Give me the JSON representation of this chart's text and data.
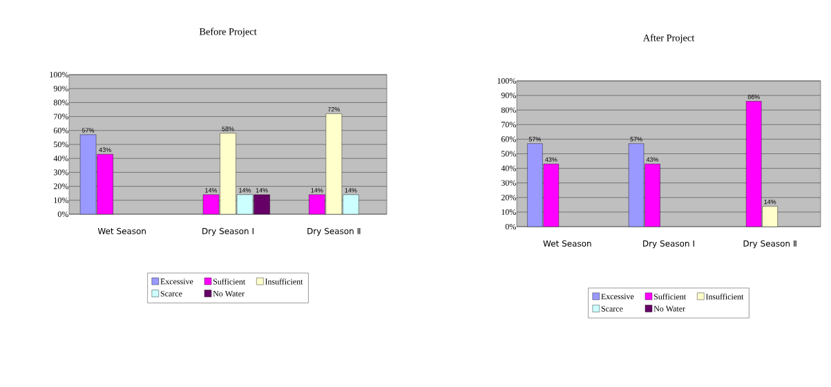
{
  "chart_data": [
    {
      "type": "bar",
      "title": "Before Project",
      "categories": [
        "Wet Season",
        "Dry Season Ⅰ",
        "Dry Season Ⅱ"
      ],
      "ylim": [
        0,
        100
      ],
      "yticks": [
        {
          "value": 0,
          "label": "0%"
        },
        {
          "value": 10,
          "label": "10%"
        },
        {
          "value": 20,
          "label": "20%"
        },
        {
          "value": 30,
          "label": "30%"
        },
        {
          "value": 40,
          "label": "40%"
        },
        {
          "value": 50,
          "label": "50%"
        },
        {
          "value": 60,
          "label": "60%"
        },
        {
          "value": 70,
          "label": "70%"
        },
        {
          "value": 80,
          "label": "80%"
        },
        {
          "value": 90,
          "label": "90%"
        },
        {
          "value": 100,
          "label": "100%"
        }
      ],
      "grid": "y",
      "legend": "bottom",
      "series": [
        {
          "name": "Excessive",
          "color": "#9999ff",
          "values": [
            57,
            null,
            null
          ],
          "value_labels": [
            "57%",
            null,
            null
          ]
        },
        {
          "name": "Sufficient",
          "color": "#ff00ff",
          "values": [
            43,
            14,
            14
          ],
          "value_labels": [
            "43%",
            "14%",
            "14%"
          ]
        },
        {
          "name": "Insufficient",
          "color": "#ffffcc",
          "values": [
            null,
            58,
            72
          ],
          "value_labels": [
            null,
            "58%",
            "72%"
          ]
        },
        {
          "name": "Scarce",
          "color": "#ccffff",
          "values": [
            null,
            14,
            14
          ],
          "value_labels": [
            null,
            "14%",
            "14%"
          ]
        },
        {
          "name": "No Water",
          "color": "#660066",
          "values": [
            null,
            14,
            null
          ],
          "value_labels": [
            null,
            "14%",
            null
          ]
        }
      ]
    },
    {
      "type": "bar",
      "title": "After Project",
      "categories": [
        "Wet Season",
        "Dry Season Ⅰ",
        "Dry Season Ⅱ"
      ],
      "ylim": [
        0,
        100
      ],
      "yticks": [
        {
          "value": 0,
          "label": "0%"
        },
        {
          "value": 10,
          "label": "10%"
        },
        {
          "value": 20,
          "label": "20%"
        },
        {
          "value": 30,
          "label": "30%"
        },
        {
          "value": 40,
          "label": "40%"
        },
        {
          "value": 50,
          "label": "50%"
        },
        {
          "value": 60,
          "label": "60%"
        },
        {
          "value": 70,
          "label": "70%"
        },
        {
          "value": 80,
          "label": "80%"
        },
        {
          "value": 90,
          "label": "90%"
        },
        {
          "value": 100,
          "label": "100%"
        }
      ],
      "grid": "y",
      "legend": "bottom",
      "series": [
        {
          "name": "Excessive",
          "color": "#9999ff",
          "values": [
            57,
            57,
            null
          ],
          "value_labels": [
            "57%",
            "57%",
            null
          ]
        },
        {
          "name": "Sufficient",
          "color": "#ff00ff",
          "values": [
            43,
            43,
            86
          ],
          "value_labels": [
            "43%",
            "43%",
            "86%"
          ]
        },
        {
          "name": "Insufficient",
          "color": "#ffffcc",
          "values": [
            null,
            null,
            14
          ],
          "value_labels": [
            null,
            null,
            "14%"
          ]
        },
        {
          "name": "Scarce",
          "color": "#ccffff",
          "values": [
            null,
            null,
            null
          ]
        },
        {
          "name": "No Water",
          "color": "#660066",
          "values": [
            null,
            null,
            null
          ]
        }
      ]
    }
  ]
}
